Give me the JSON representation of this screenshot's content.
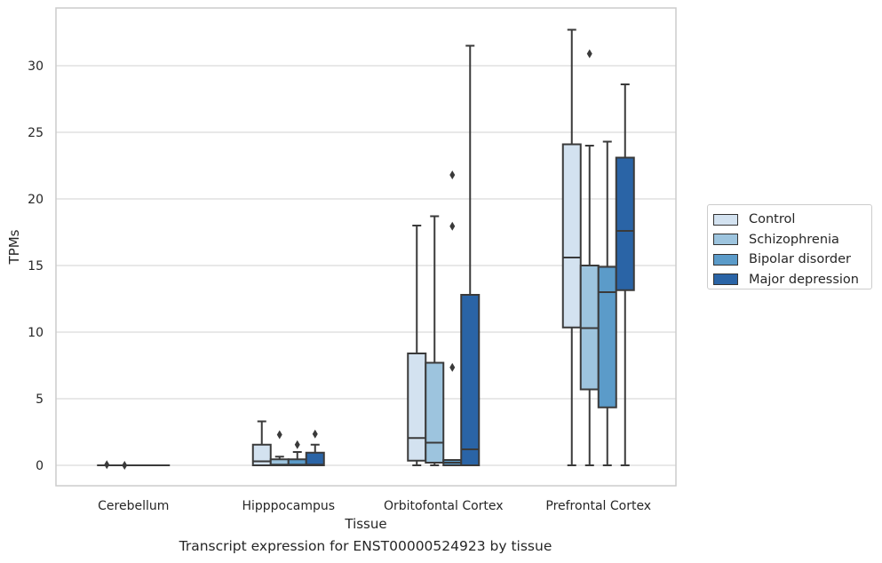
{
  "chart_data": {
    "type": "box",
    "title": "Transcript expression for ENST00000524923 by tissue",
    "xlabel": "Tissue",
    "ylabel": "TPMs",
    "ylim": [
      -1.6,
      34.4
    ],
    "yticks": [
      0,
      5,
      10,
      15,
      20,
      25,
      30
    ],
    "grid": "horizontal",
    "legend_position": "right",
    "categories": [
      "Cerebellum",
      "Hipppocampus",
      "Orbitofontal Cortex",
      "Prefrontal Cortex"
    ],
    "series": [
      {
        "name": "Control",
        "color": "#d3e2f0",
        "boxes": [
          {
            "min": 0,
            "q1": 0,
            "median": 0,
            "q3": 0,
            "max": 0,
            "outliers": [
              0.05
            ]
          },
          {
            "min": 0,
            "q1": 0,
            "median": 0.3,
            "q3": 1.55,
            "max": 3.3,
            "outliers": []
          },
          {
            "min": 0,
            "q1": 0.35,
            "median": 2.05,
            "q3": 8.4,
            "max": 18.0,
            "outliers": []
          },
          {
            "min": 0,
            "q1": 10.35,
            "median": 15.6,
            "q3": 24.1,
            "max": 32.7,
            "outliers": []
          }
        ]
      },
      {
        "name": "Schizophrenia",
        "color": "#9dc4de",
        "boxes": [
          {
            "min": 0,
            "q1": 0,
            "median": 0,
            "q3": 0,
            "max": 0,
            "outliers": [
              0
            ]
          },
          {
            "min": 0,
            "q1": 0,
            "median": 0.05,
            "q3": 0.45,
            "max": 0.65,
            "outliers": [
              2.3
            ]
          },
          {
            "min": 0,
            "q1": 0.2,
            "median": 1.7,
            "q3": 7.7,
            "max": 18.7,
            "outliers": []
          },
          {
            "min": 0,
            "q1": 5.7,
            "median": 10.3,
            "q3": 15.0,
            "max": 24.0,
            "outliers": [
              30.9
            ]
          }
        ]
      },
      {
        "name": "Bipolar disorder",
        "color": "#5b9bc9",
        "boxes": [
          {
            "min": 0,
            "q1": 0,
            "median": 0,
            "q3": 0,
            "max": 0,
            "outliers": []
          },
          {
            "min": 0,
            "q1": 0,
            "median": 0.05,
            "q3": 0.45,
            "max": 1.0,
            "outliers": [
              1.55
            ]
          },
          {
            "min": 0,
            "q1": 0,
            "median": 0.2,
            "q3": 0.4,
            "max": 0.4,
            "outliers": [
              7.35,
              17.95,
              21.8
            ]
          },
          {
            "min": 0,
            "q1": 4.35,
            "median": 13.0,
            "q3": 14.9,
            "max": 24.3,
            "outliers": []
          }
        ]
      },
      {
        "name": "Major depression",
        "color": "#2a64a6",
        "boxes": [
          {
            "min": 0,
            "q1": 0,
            "median": 0,
            "q3": 0,
            "max": 0,
            "outliers": []
          },
          {
            "min": 0,
            "q1": 0,
            "median": 0.05,
            "q3": 0.95,
            "max": 1.55,
            "outliers": [
              2.35
            ]
          },
          {
            "min": 0,
            "q1": 0,
            "median": 1.2,
            "q3": 12.8,
            "max": 31.5,
            "outliers": []
          },
          {
            "min": 0,
            "q1": 13.15,
            "median": 17.6,
            "q3": 23.1,
            "max": 28.6,
            "outliers": []
          }
        ]
      }
    ]
  }
}
